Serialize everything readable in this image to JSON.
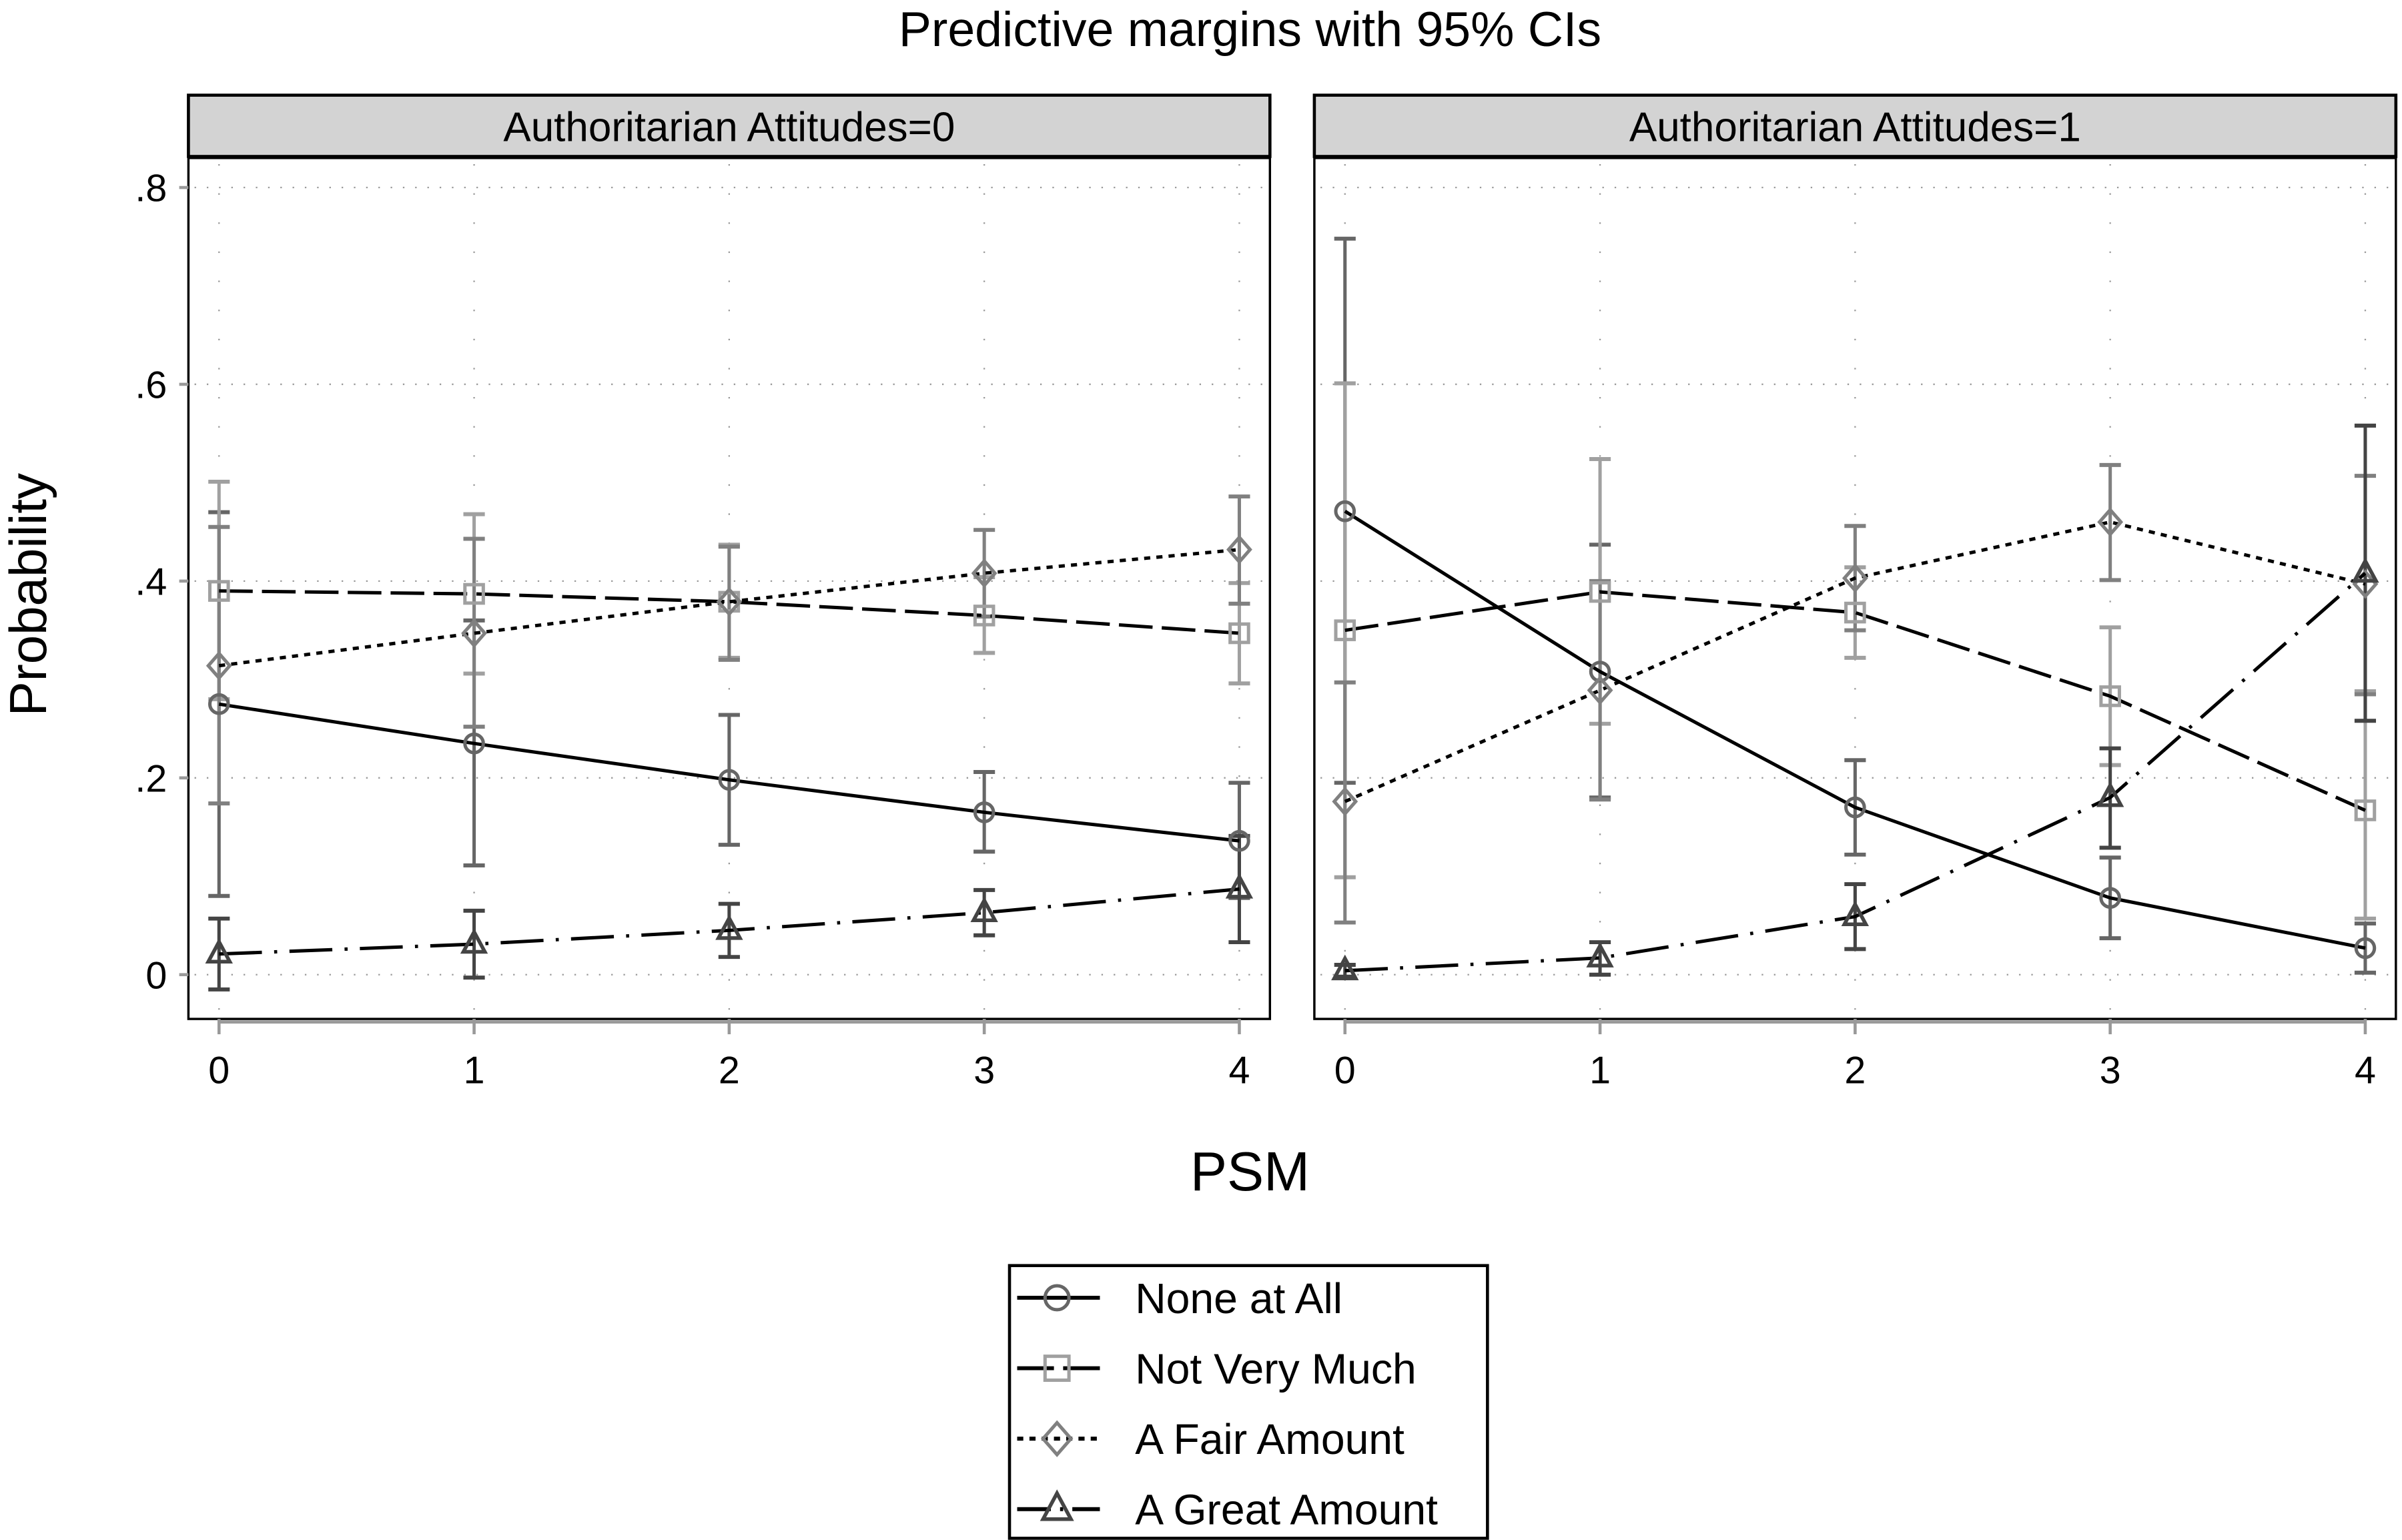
{
  "chart_data": {
    "type": "line",
    "title": "Predictive margins with 95% CIs",
    "xlabel": "PSM",
    "ylabel": "Probability",
    "x": [
      0,
      1,
      2,
      3,
      4
    ],
    "x_ticks": [
      "0",
      "1",
      "2",
      "3",
      "4"
    ],
    "y_ticks": [
      {
        "value": 0,
        "label": "0"
      },
      {
        "value": 0.2,
        "label": ".2"
      },
      {
        "value": 0.4,
        "label": ".4"
      },
      {
        "value": 0.6,
        "label": ".6"
      },
      {
        "value": 0.8,
        "label": ".8"
      }
    ],
    "ylim": [
      -0.045,
      0.83
    ],
    "xlim": [
      -0.12,
      4.12
    ],
    "grid": true,
    "legend_position": "bottom",
    "series_styles": [
      {
        "name": "None at All",
        "marker": "circle",
        "line": "solid",
        "color": "#666666"
      },
      {
        "name": "Not Very Much",
        "marker": "square",
        "line": "longdash",
        "color": "#a0a0a0"
      },
      {
        "name": "A Fair Amount",
        "marker": "diamond",
        "line": "dotted",
        "color": "#808080"
      },
      {
        "name": "A Great Amount",
        "marker": "triangle",
        "line": "dashdot",
        "color": "#444444"
      }
    ],
    "panels": [
      {
        "label": "Authoritarian Attitudes=0",
        "series": [
          {
            "name": "None at All",
            "values": [
              0.275,
              0.235,
              0.198,
              0.165,
              0.136
            ],
            "ci_low": [
              0.08,
              0.111,
              0.132,
              0.125,
              0.078
            ],
            "ci_high": [
              0.47,
              0.36,
              0.264,
              0.206,
              0.195
            ]
          },
          {
            "name": "Not Very Much",
            "values": [
              0.39,
              0.387,
              0.379,
              0.365,
              0.347
            ],
            "ci_low": [
              0.28,
              0.306,
              0.322,
              0.327,
              0.296
            ],
            "ci_high": [
              0.501,
              0.468,
              0.437,
              0.404,
              0.398
            ]
          },
          {
            "name": "A Fair Amount",
            "values": [
              0.314,
              0.347,
              0.379,
              0.408,
              0.432
            ],
            "ci_low": [
              0.174,
              0.252,
              0.32,
              0.364,
              0.377
            ],
            "ci_high": [
              0.455,
              0.443,
              0.435,
              0.452,
              0.486
            ]
          },
          {
            "name": "A Great Amount",
            "values": [
              0.021,
              0.031,
              0.045,
              0.063,
              0.087
            ],
            "ci_low": [
              -0.015,
              -0.003,
              0.018,
              0.04,
              0.033
            ],
            "ci_high": [
              0.057,
              0.065,
              0.072,
              0.086,
              0.141
            ]
          }
        ]
      },
      {
        "label": "Authoritarian Attitudes=1",
        "series": [
          {
            "name": "None at All",
            "values": [
              0.471,
              0.308,
              0.17,
              0.078,
              0.027
            ],
            "ci_low": [
              0.195,
              0.18,
              0.122,
              0.037,
              0.002
            ],
            "ci_high": [
              0.748,
              0.437,
              0.218,
              0.119,
              0.052
            ]
          },
          {
            "name": "Not Very Much",
            "values": [
              0.35,
              0.389,
              0.368,
              0.283,
              0.167
            ],
            "ci_low": [
              0.099,
              0.255,
              0.322,
              0.213,
              0.057
            ],
            "ci_high": [
              0.601,
              0.524,
              0.414,
              0.353,
              0.288
            ]
          },
          {
            "name": "A Fair Amount",
            "values": [
              0.176,
              0.289,
              0.403,
              0.46,
              0.397
            ],
            "ci_low": [
              0.053,
              0.178,
              0.35,
              0.401,
              0.285
            ],
            "ci_high": [
              0.297,
              0.4,
              0.456,
              0.518,
              0.507
            ]
          },
          {
            "name": "A Great Amount",
            "values": [
              0.004,
              0.017,
              0.059,
              0.18,
              0.408
            ],
            "ci_low": [
              -0.002,
              0.0,
              0.026,
              0.129,
              0.258
            ],
            "ci_high": [
              0.01,
              0.033,
              0.092,
              0.23,
              0.558
            ]
          }
        ]
      }
    ]
  },
  "legend": {
    "items": [
      {
        "label": "None at All"
      },
      {
        "label": "Not Very Much"
      },
      {
        "label": "A Fair Amount"
      },
      {
        "label": "A Great Amount"
      }
    ]
  }
}
